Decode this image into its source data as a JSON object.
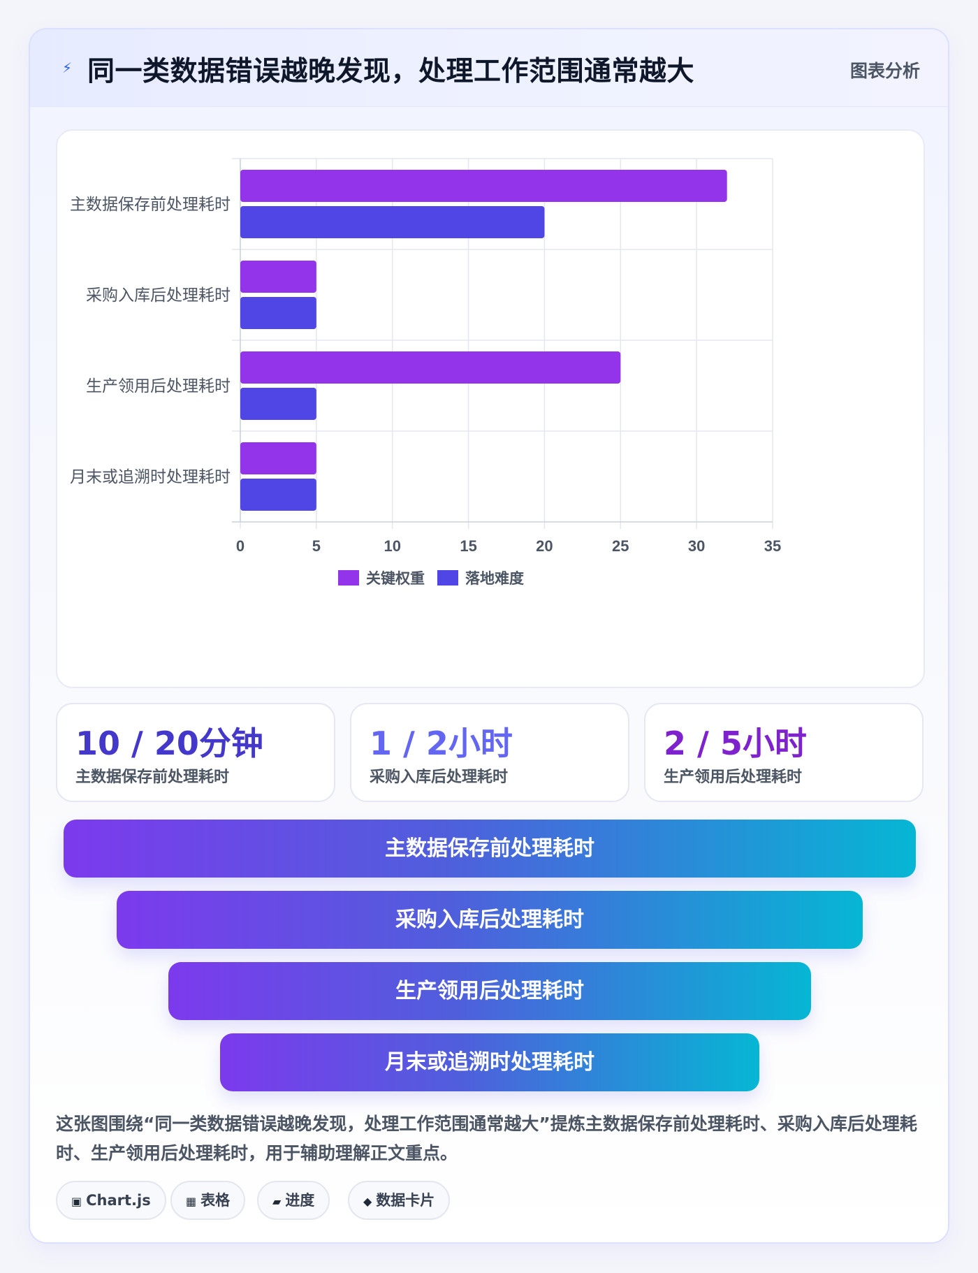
{
  "header": {
    "icon": "lightning-icon",
    "title": "同一类数据错误越晚发现，处理工作范围通常越大",
    "tag": "图表分析"
  },
  "chart_data": {
    "type": "bar",
    "orientation": "horizontal",
    "categories": [
      "主数据保存前处理耗时",
      "采购入库后处理耗时",
      "生产领用后处理耗时",
      "月末或追溯时处理耗时"
    ],
    "series": [
      {
        "name": "关键权重",
        "color": "#9333ea",
        "values": [
          32,
          5,
          25,
          5
        ]
      },
      {
        "name": "落地难度",
        "color": "#4f46e5",
        "values": [
          20,
          5,
          5,
          5
        ]
      }
    ],
    "xlim": [
      0,
      35
    ],
    "xticks": [
      "0",
      "5",
      "10",
      "15",
      "20",
      "25",
      "30",
      "35"
    ],
    "grid": true,
    "legend_position": "bottom-center"
  },
  "stats": [
    {
      "value": "10 / 20分钟",
      "label": "主数据保存前处理耗时",
      "color": "#4338ca"
    },
    {
      "value": "1 / 2小时",
      "label": "采购入库后处理耗时",
      "color": "#6366f1"
    },
    {
      "value": "2 / 5小时",
      "label": "生产领用后处理耗时",
      "color": "#7e22ce"
    }
  ],
  "funnel": [
    "主数据保存前处理耗时",
    "采购入库后处理耗时",
    "生产领用后处理耗时",
    "月末或追溯时处理耗时"
  ],
  "description": "这张图围绕“同一类数据错误越晚发现，处理工作范围通常越大”提炼主数据保存前处理耗时、采购入库后处理耗时、生产领用后处理耗时，用于辅助理解正文重点。",
  "chips": [
    {
      "icon": "▣",
      "icon_name": "chart-icon",
      "label": "Chart.js"
    },
    {
      "icon": "▦",
      "icon_name": "table-icon",
      "label": "表格"
    },
    {
      "icon": "▰",
      "icon_name": "progress-icon",
      "label": "进度"
    },
    {
      "icon": "◆",
      "icon_name": "data-card-icon",
      "label": "数据卡片"
    }
  ]
}
